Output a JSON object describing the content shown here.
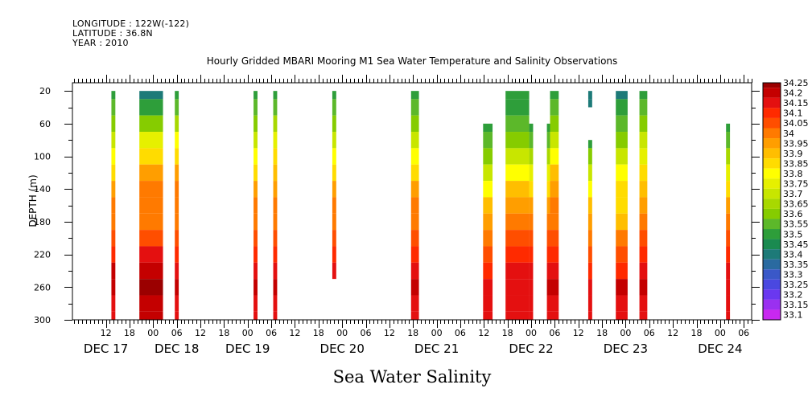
{
  "meta": {
    "longitude": "LONGITUDE : 122W(-122)",
    "latitude": "LATITUDE : 36.8N",
    "year": "YEAR : 2010"
  },
  "chart_data": {
    "type": "heatmap",
    "title": "Hourly Gridded MBARI Mooring M1 Sea Water Temperature and Salinity Observations",
    "xlabel": "Sea Water Salinity",
    "ylabel": "DEPTH (m)",
    "y_ticks": [
      20,
      60,
      100,
      140,
      180,
      220,
      260,
      300
    ],
    "ylim": [
      10,
      300
    ],
    "x_hour_ticks": [
      {
        "h": 12,
        "label": "12"
      },
      {
        "h": 18,
        "label": "18"
      },
      {
        "h": 24,
        "label": "00"
      },
      {
        "h": 30,
        "label": "06"
      },
      {
        "h": 36,
        "label": "12"
      },
      {
        "h": 42,
        "label": "18"
      },
      {
        "h": 48,
        "label": "00"
      },
      {
        "h": 54,
        "label": "06"
      },
      {
        "h": 60,
        "label": "12"
      },
      {
        "h": 66,
        "label": "18"
      },
      {
        "h": 72,
        "label": "00"
      },
      {
        "h": 78,
        "label": "06"
      },
      {
        "h": 84,
        "label": "12"
      },
      {
        "h": 90,
        "label": "18"
      },
      {
        "h": 96,
        "label": "00"
      },
      {
        "h": 102,
        "label": "06"
      },
      {
        "h": 108,
        "label": "12"
      },
      {
        "h": 114,
        "label": "18"
      },
      {
        "h": 120,
        "label": "00"
      },
      {
        "h": 126,
        "label": "06"
      },
      {
        "h": 132,
        "label": "12"
      },
      {
        "h": 138,
        "label": "18"
      },
      {
        "h": 144,
        "label": "00"
      },
      {
        "h": 150,
        "label": "06"
      },
      {
        "h": 156,
        "label": "12"
      },
      {
        "h": 162,
        "label": "18"
      },
      {
        "h": 168,
        "label": "00"
      },
      {
        "h": 174,
        "label": "06"
      }
    ],
    "x_day_labels": [
      {
        "h": 12,
        "label": "DEC 17"
      },
      {
        "h": 30,
        "label": "DEC 18"
      },
      {
        "h": 48,
        "label": "DEC 19"
      },
      {
        "h": 72,
        "label": "DEC 20"
      },
      {
        "h": 96,
        "label": "DEC 21"
      },
      {
        "h": 120,
        "label": "DEC 22"
      },
      {
        "h": 144,
        "label": "DEC 23"
      },
      {
        "h": 168,
        "label": "DEC 24"
      }
    ],
    "xlim_hours": [
      3.5,
      176
    ],
    "legend": {
      "placement": "right",
      "levels": [
        "34.25",
        "34.2",
        "34.15",
        "34.1",
        "34.05",
        "34",
        "33.95",
        "33.9",
        "33.85",
        "33.8",
        "33.75",
        "33.7",
        "33.65",
        "33.6",
        "33.55",
        "33.5",
        "33.45",
        "33.4",
        "33.35",
        "33.3",
        "33.25",
        "33.2",
        "33.15",
        "33.1"
      ],
      "colors": [
        "#9b0000",
        "#c40000",
        "#e41010",
        "#ff2a00",
        "#ff4e00",
        "#ff7a00",
        "#ff9e00",
        "#ffbe00",
        "#ffdc00",
        "#ffff00",
        "#e6f000",
        "#c8e600",
        "#a8d800",
        "#86cc00",
        "#5cb82a",
        "#2e9e3a",
        "#1a8a50",
        "#1d7a78",
        "#2a6aa0",
        "#3a58c8",
        "#4a48e0",
        "#6a38f0",
        "#9a30f0",
        "#c828f0"
      ]
    },
    "profile_depths": [
      20,
      40,
      60,
      80,
      100,
      120,
      140,
      160,
      180,
      200,
      220,
      240,
      260,
      280,
      300
    ],
    "columns": [
      {
        "start": 13.4,
        "end": 14.4,
        "top": 20,
        "bottom": 300,
        "values": [
          33.5,
          33.55,
          33.6,
          33.7,
          33.8,
          33.85,
          33.95,
          34.0,
          34.0,
          34.05,
          34.1,
          34.2,
          34.2,
          34.15,
          34.15
        ]
      },
      {
        "start": 20.5,
        "end": 26.5,
        "top": 20,
        "bottom": 300,
        "values": [
          33.4,
          33.5,
          33.6,
          33.75,
          33.85,
          33.95,
          34.0,
          34.0,
          34.0,
          34.05,
          34.15,
          34.2,
          34.25,
          34.2,
          34.2
        ]
      },
      {
        "start": 29.5,
        "end": 30.5,
        "top": 20,
        "bottom": 300,
        "values": [
          33.5,
          33.55,
          33.65,
          33.8,
          33.85,
          33.95,
          34.0,
          34.0,
          34.0,
          34.05,
          34.1,
          34.15,
          34.2,
          34.15,
          34.15
        ]
      },
      {
        "start": 49.5,
        "end": 50.5,
        "top": 20,
        "bottom": 300,
        "values": [
          33.5,
          33.55,
          33.6,
          33.7,
          33.8,
          33.85,
          33.95,
          34.0,
          34.0,
          34.05,
          34.1,
          34.15,
          34.2,
          34.15,
          34.15
        ]
      },
      {
        "start": 54.5,
        "end": 55.5,
        "top": 20,
        "bottom": 300,
        "values": [
          33.5,
          33.55,
          33.65,
          33.75,
          33.85,
          33.9,
          33.95,
          34.0,
          34.0,
          34.05,
          34.1,
          34.15,
          34.2,
          34.15,
          34.15
        ]
      },
      {
        "start": 69.5,
        "end": 70.5,
        "top": 20,
        "bottom": 250,
        "values": [
          33.5,
          33.55,
          33.6,
          33.7,
          33.8,
          33.85,
          33.95,
          34.0,
          34.0,
          34.05,
          34.1,
          34.15,
          34.2
        ]
      },
      {
        "start": 89.5,
        "end": 91.5,
        "top": 20,
        "bottom": 300,
        "values": [
          33.5,
          33.55,
          33.6,
          33.7,
          33.8,
          33.85,
          33.95,
          34.0,
          34.0,
          34.05,
          34.1,
          34.15,
          34.2,
          34.15,
          34.15
        ]
      },
      {
        "start": 107.8,
        "end": 110.2,
        "top": 60,
        "bottom": 300,
        "values": [
          null,
          null,
          33.5,
          33.55,
          33.6,
          33.7,
          33.8,
          33.9,
          33.95,
          34.0,
          34.05,
          34.1,
          34.15,
          34.15,
          34.15
        ]
      },
      {
        "start": 113.5,
        "end": 119.5,
        "top": 20,
        "bottom": 300,
        "values": [
          33.5,
          33.5,
          33.55,
          33.6,
          33.7,
          33.8,
          33.9,
          33.95,
          34.0,
          34.05,
          34.1,
          34.15,
          34.15,
          34.15,
          34.15
        ]
      },
      {
        "start": 119.5,
        "end": 120.5,
        "top": 60,
        "bottom": 300,
        "values": [
          null,
          null,
          33.5,
          33.55,
          33.65,
          33.75,
          33.85,
          33.95,
          34.0,
          34.05,
          34.1,
          34.15,
          34.15,
          34.15,
          34.15
        ]
      },
      {
        "start": 124.0,
        "end": 124.8,
        "top": 60,
        "bottom": 300,
        "values": [
          null,
          null,
          33.5,
          33.55,
          33.65,
          33.75,
          33.85,
          33.95,
          34.0,
          34.05,
          34.1,
          34.15,
          34.2,
          34.15,
          34.15
        ]
      },
      {
        "start": 124.8,
        "end": 127.0,
        "top": 20,
        "bottom": 300,
        "values": [
          33.5,
          33.55,
          33.6,
          33.7,
          33.8,
          33.9,
          33.95,
          34.0,
          34.0,
          34.05,
          34.1,
          34.15,
          34.2,
          34.15,
          34.15
        ]
      },
      {
        "start": 134.5,
        "end": 135.5,
        "top": 20,
        "bottom": 40,
        "values": [
          33.4,
          33.4
        ]
      },
      {
        "start": 134.5,
        "end": 135.5,
        "top": 80,
        "bottom": 300,
        "values": [
          null,
          null,
          null,
          33.5,
          33.6,
          33.7,
          33.8,
          33.9,
          33.95,
          34.0,
          34.05,
          34.1,
          34.15,
          34.15,
          34.15
        ]
      },
      {
        "start": 141.5,
        "end": 144.5,
        "top": 20,
        "bottom": 300,
        "values": [
          33.4,
          33.5,
          33.55,
          33.6,
          33.7,
          33.8,
          33.85,
          33.85,
          33.9,
          34.0,
          34.05,
          34.1,
          34.2,
          34.15,
          34.15
        ]
      },
      {
        "start": 147.5,
        "end": 149.5,
        "top": 20,
        "bottom": 300,
        "values": [
          33.5,
          33.55,
          33.6,
          33.7,
          33.75,
          33.85,
          33.9,
          33.95,
          34.0,
          34.05,
          34.1,
          34.15,
          34.2,
          34.15,
          34.15
        ]
      },
      {
        "start": 169.5,
        "end": 170.5,
        "top": 60,
        "bottom": 300,
        "values": [
          null,
          null,
          33.5,
          33.55,
          33.65,
          33.75,
          33.85,
          33.95,
          34.0,
          34.05,
          34.1,
          34.15,
          34.15,
          34.15,
          34.15
        ]
      }
    ]
  }
}
